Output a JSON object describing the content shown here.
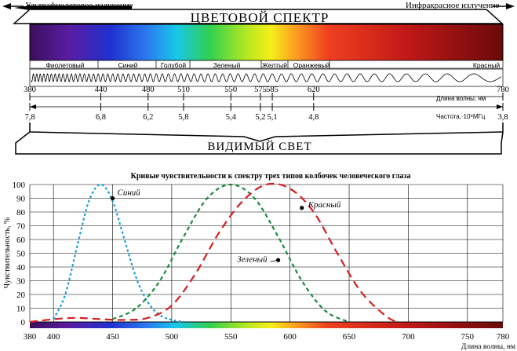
{
  "header": {
    "uv_label": "Ультрафиолетовое излучение",
    "ir_label": "Инфракрасное излучение",
    "title": "ЦВЕТОВОЙ СПЕКТР"
  },
  "bands": [
    {
      "label": "Фиолетовый"
    },
    {
      "label": "Синий"
    },
    {
      "label": "Голубой"
    },
    {
      "label": "Зеленый"
    },
    {
      "label": "Желтый"
    },
    {
      "label": "Оранжевый"
    },
    {
      "label": "Красный"
    }
  ],
  "wavelength_ticks": [
    "380",
    "440",
    "480",
    "510",
    "550",
    "575",
    "585",
    "620",
    "780"
  ],
  "wavelength_axis_label": "Длина волны, нм",
  "frequency_ticks": [
    "7,8",
    "6,8",
    "6,2",
    "5,8",
    "5,4",
    "5,2",
    "5,1",
    "4,8",
    "3,8"
  ],
  "frequency_axis_label": "Частота,·10⁸МГц",
  "visible_label": "ВИДИМЫЙ СВЕТ",
  "colors": {
    "blue_curve": "#1a9bd7",
    "green_curve": "#1a8a3a",
    "red_curve": "#d42020"
  },
  "chart_data": {
    "type": "line",
    "title": "Кривые чувствительности к спектру трех типов колбочек человеческого глаза",
    "xlabel": "Длина волны, нм",
    "ylabel": "Чувствительность, %",
    "xlim": [
      380,
      780
    ],
    "ylim": [
      0,
      100
    ],
    "x_ticks": [
      "380",
      "400",
      "450",
      "500",
      "550",
      "600",
      "650",
      "700",
      "750",
      "780"
    ],
    "y_ticks": [
      "0",
      "10",
      "20",
      "30",
      "40",
      "50",
      "60",
      "70",
      "80",
      "90",
      "100"
    ],
    "grid": true,
    "series": [
      {
        "name": "Синий",
        "color": "#1a9bd7",
        "x": [
          400,
          410,
          420,
          430,
          440,
          450,
          460,
          470,
          480,
          490,
          500,
          510
        ],
        "y": [
          2,
          20,
          55,
          88,
          100,
          88,
          60,
          32,
          14,
          5,
          1.5,
          0
        ]
      },
      {
        "name": "Зеленый",
        "color": "#1a8a3a",
        "x": [
          450,
          470,
          490,
          510,
          530,
          550,
          570,
          590,
          610,
          630,
          650
        ],
        "y": [
          2,
          10,
          30,
          62,
          90,
          100,
          90,
          62,
          30,
          8,
          0
        ]
      },
      {
        "name": "Красный",
        "color": "#d42020",
        "x": [
          380,
          400,
          420,
          440,
          460,
          480,
          500,
          520,
          540,
          560,
          580,
          600,
          620,
          640,
          660,
          680,
          690
        ],
        "y": [
          0,
          2,
          3,
          2,
          1.5,
          3,
          12,
          35,
          65,
          88,
          100,
          97,
          80,
          50,
          22,
          5,
          0
        ]
      }
    ],
    "annotations": [
      {
        "text": "Синий",
        "x": 450,
        "y": 90
      },
      {
        "text": "Зеленый",
        "x": 590,
        "y": 45
      },
      {
        "text": "Красный",
        "x": 610,
        "y": 83
      }
    ]
  }
}
